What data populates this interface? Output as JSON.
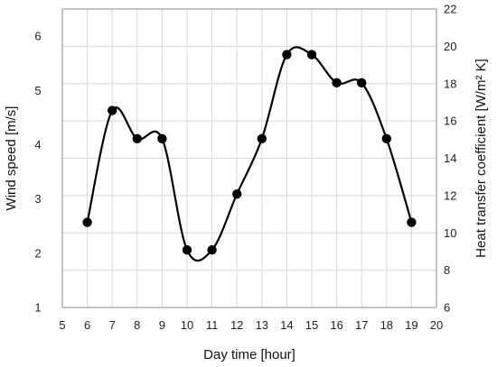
{
  "chart_data": {
    "type": "line",
    "title": "",
    "xlabel": "Day time [hour]",
    "ylabel": "Wind speed [m/s]",
    "y2label": "Heat transfer coefficient [W/m² K]",
    "xlim": [
      5,
      20
    ],
    "ylim": [
      1,
      6.5
    ],
    "y2lim": [
      6,
      22
    ],
    "xticks": [
      5,
      6,
      7,
      8,
      9,
      10,
      11,
      12,
      13,
      14,
      15,
      16,
      17,
      18,
      19,
      20
    ],
    "yticks": [
      1,
      2,
      3,
      4,
      5,
      6
    ],
    "y2ticks": [
      6,
      8,
      10,
      12,
      14,
      16,
      18,
      20,
      22
    ],
    "grid": true,
    "legend": "none",
    "line_style": "smooth",
    "marker": "filled-circle",
    "series_color": "#000000",
    "series": [
      {
        "x": [
          6,
          7,
          8,
          9,
          10,
          11,
          12,
          13,
          14,
          15,
          16,
          17,
          18,
          19
        ],
        "values": [
          2.57,
          4.63,
          4.11,
          4.11,
          2.06,
          2.06,
          3.09,
          4.11,
          5.66,
          5.66,
          5.14,
          5.14,
          4.11,
          2.57
        ]
      }
    ]
  }
}
